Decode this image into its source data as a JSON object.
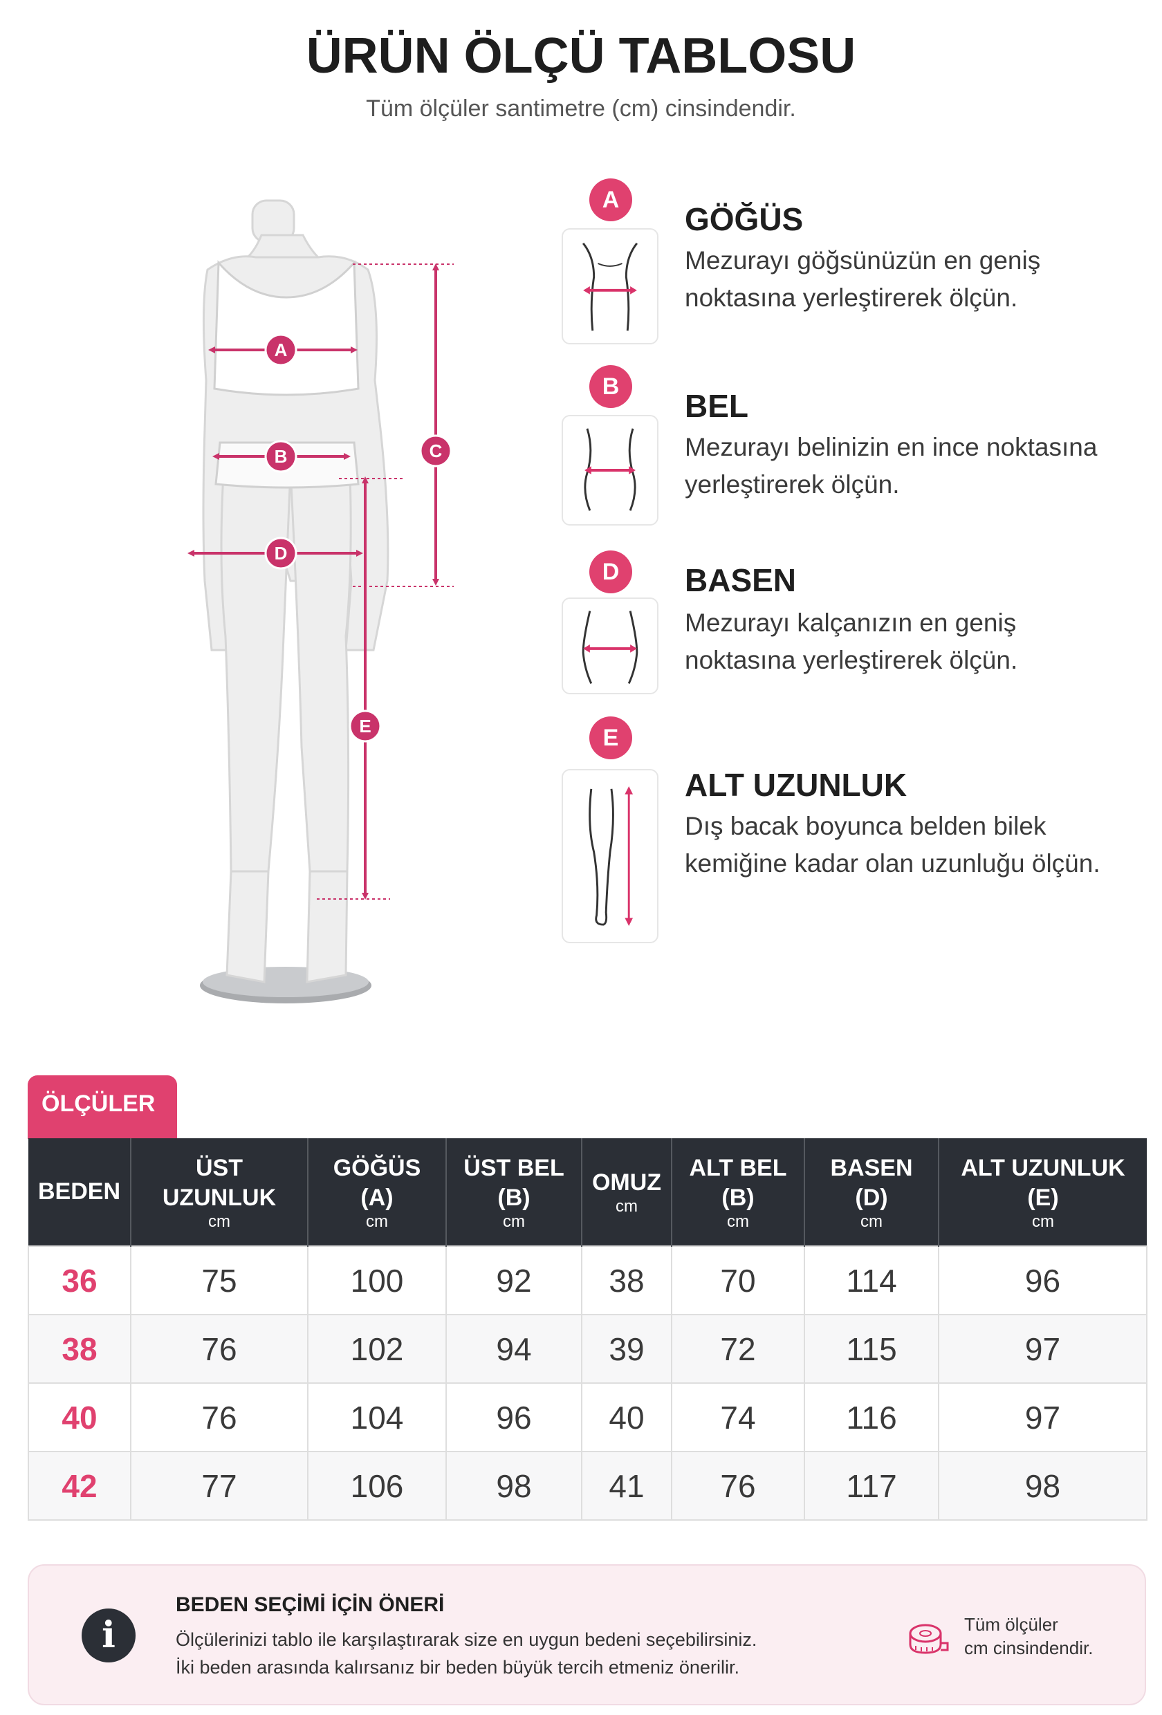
{
  "header": {
    "title": "ÜRÜN ÖLÇÜ TABLOSU",
    "subtitle": "Tüm ölçüler santimetre (cm) cinsindendir."
  },
  "colors": {
    "accent": "#e0416f",
    "dark": "#2b2f36",
    "tip_bg": "#fbeef2"
  },
  "figure": {
    "markers": [
      "A",
      "B",
      "C",
      "D",
      "E"
    ]
  },
  "measurements": [
    {
      "badge": "A",
      "title": "GÖĞÜS",
      "icon": "chest-measure-icon",
      "line1": "Mezurayı göğsünüzün en geniş",
      "line2": "noktasına yerleştirerek ölçün."
    },
    {
      "badge": "B",
      "title": "BEL",
      "icon": "waist-measure-icon",
      "line1": "Mezurayı belinizin en ince noktasına",
      "line2": "yerleştirerek ölçün."
    },
    {
      "badge": "D",
      "title": "BASEN",
      "icon": "hip-measure-icon",
      "line1": "Mezurayı kalçanızın en geniş",
      "line2": "noktasına yerleştirerek ölçün."
    },
    {
      "badge": "E",
      "title": "ALT UZUNLUK",
      "icon": "leg-length-icon",
      "line1": "Dış bacak boyunca belden bilek",
      "line2": "kemiğine kadar olan uzunluğu ölçün."
    }
  ],
  "table": {
    "tab_label": "ÖLÇÜLER",
    "headers": [
      {
        "l1": "BEDEN",
        "l2": "",
        "unit": ""
      },
      {
        "l1": "ÜST",
        "l2": "UZUNLUK",
        "unit": "cm"
      },
      {
        "l1": "GÖĞÜS",
        "l2": "(A)",
        "unit": "cm"
      },
      {
        "l1": "ÜST BEL",
        "l2": "(B)",
        "unit": "cm"
      },
      {
        "l1": "OMUZ",
        "l2": "",
        "unit": "cm"
      },
      {
        "l1": "ALT BEL",
        "l2": "(B)",
        "unit": "cm"
      },
      {
        "l1": "BASEN",
        "l2": "(D)",
        "unit": "cm"
      },
      {
        "l1": "ALT UZUNLUK",
        "l2": "(E)",
        "unit": "cm"
      }
    ],
    "rows": [
      [
        "36",
        "75",
        "100",
        "92",
        "38",
        "70",
        "114",
        "96"
      ],
      [
        "38",
        "76",
        "102",
        "94",
        "39",
        "72",
        "115",
        "97"
      ],
      [
        "40",
        "76",
        "104",
        "96",
        "40",
        "74",
        "116",
        "97"
      ],
      [
        "42",
        "77",
        "106",
        "98",
        "41",
        "76",
        "117",
        "98"
      ]
    ]
  },
  "tip": {
    "icon": "info-icon",
    "title": "BEDEN SEÇİMİ İÇİN ÖNERİ",
    "line1": "Ölçülerinizi tablo ile karşılaştırarak size en uygun bedeni seçebilirsiniz.",
    "line2": "İki beden arasında kalırsanız bir beden büyük tercih etmeniz önerilir.",
    "note_icon": "measuring-tape-icon",
    "note_line1": "Tüm ölçüler",
    "note_line2": "cm cinsindendir."
  }
}
